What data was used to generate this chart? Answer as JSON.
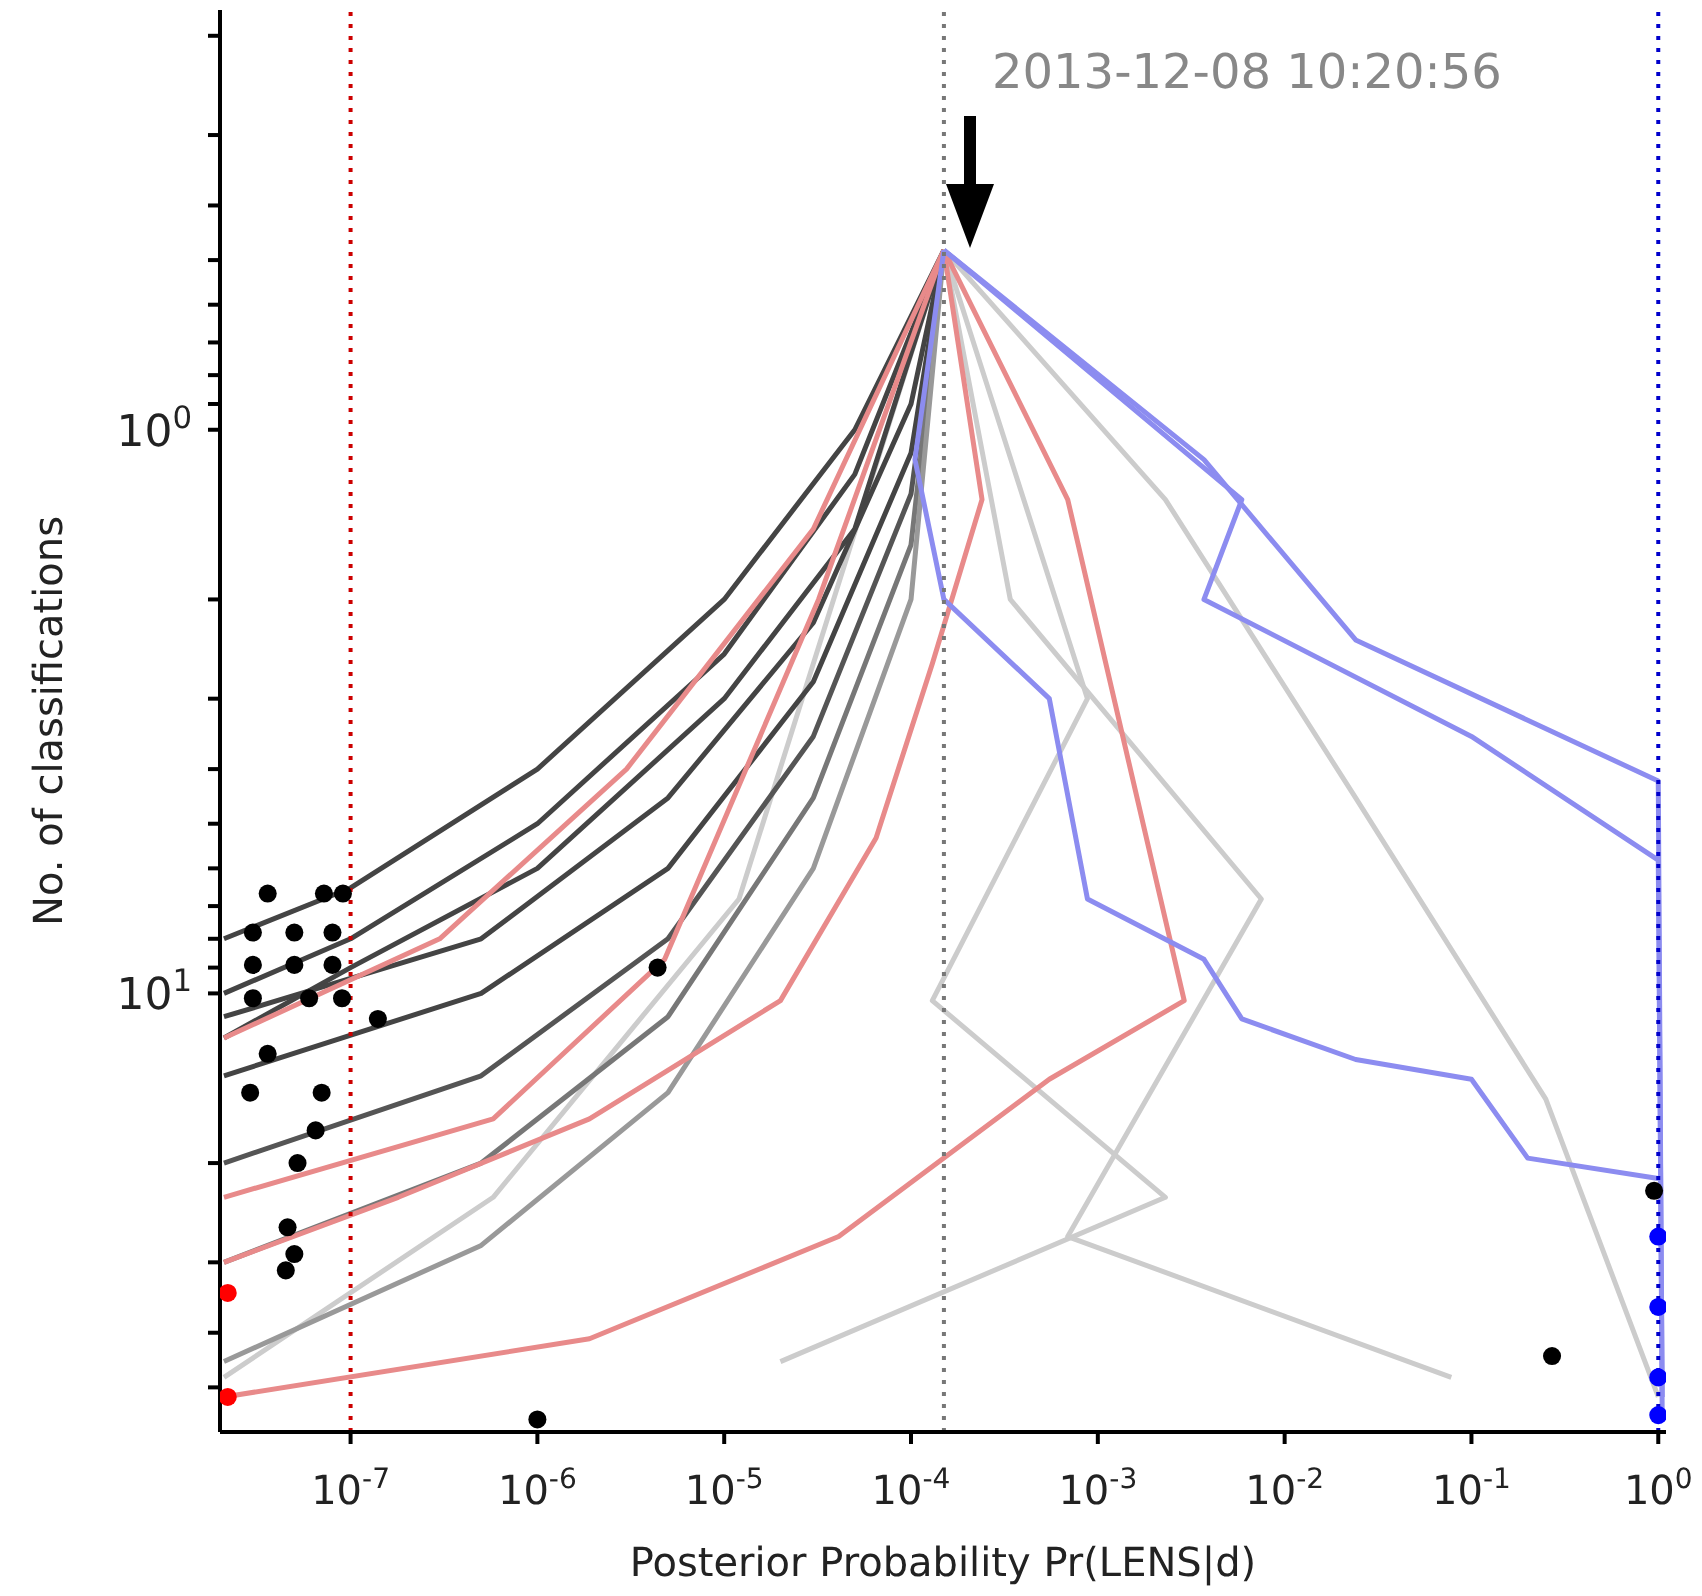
{
  "chart_data": {
    "type": "line",
    "xlabel": "Posterior Probability Pr(LENS|d)",
    "ylabel": "No. of classifications",
    "log": "xy",
    "xlim": [
      2e-08,
      1.1
    ],
    "ylim": [
      60,
      0.18
    ],
    "xticks": [
      {
        "value": 1e-07,
        "label": "10$^{-7}$"
      },
      {
        "value": 1e-06,
        "label": "10$^{-6}$"
      },
      {
        "value": 1e-05,
        "label": "10$^{-5}$"
      },
      {
        "value": 0.0001,
        "label": "10$^{-4}$"
      },
      {
        "value": 0.001,
        "label": "10$^{-3}$"
      },
      {
        "value": 0.01,
        "label": "10$^{-2}$"
      },
      {
        "value": 0.1,
        "label": "10$^{-1}$"
      },
      {
        "value": 1,
        "label": "10$^{0}$"
      }
    ],
    "yticks": [
      {
        "value": 0.2,
        "label": null
      },
      {
        "value": 0.3,
        "label": null
      },
      {
        "value": 0.4,
        "label": null
      },
      {
        "value": 0.5,
        "label": null
      },
      {
        "value": 0.6,
        "label": null
      },
      {
        "value": 0.7,
        "label": null
      },
      {
        "value": 0.8,
        "label": null
      },
      {
        "value": 0.9,
        "label": null
      },
      {
        "value": 1,
        "label": "10$^{0}$"
      },
      {
        "value": 2,
        "label": null
      },
      {
        "value": 3,
        "label": null
      },
      {
        "value": 4,
        "label": null
      },
      {
        "value": 5,
        "label": null
      },
      {
        "value": 6,
        "label": null
      },
      {
        "value": 7,
        "label": null
      },
      {
        "value": 8,
        "label": null
      },
      {
        "value": 9,
        "label": null
      },
      {
        "value": 10,
        "label": "10$^{1}$"
      },
      {
        "value": 20,
        "label": null
      },
      {
        "value": 30,
        "label": null
      },
      {
        "value": 40,
        "label": null
      },
      {
        "value": 50,
        "label": null
      }
    ],
    "grid": false,
    "line_style": "solid",
    "annotations": [
      "2013-12-08 10:20:56"
    ],
    "ref_lines": [
      {
        "axis": "x",
        "value": 1e-07,
        "color": "#cc0000",
        "line_style": "dotted"
      },
      {
        "axis": "x",
        "value": 0.00015,
        "color": "#777777",
        "line_style": "dotted"
      },
      {
        "axis": "x",
        "value": 1,
        "color": "#0000cc",
        "line_style": "dotted"
      }
    ],
    "series": [
      {
        "color": "#cccccc",
        "x": [
          0.00015,
          0.0023,
          0.024,
          0.25,
          1.0
        ],
        "values": [
          0.48,
          1.33,
          4.5,
          15.4,
          52
        ]
      },
      {
        "color": "#cccccc",
        "x": [
          0.00015,
          0.00088,
          0.00013,
          0.0023,
          2e-05
        ],
        "values": [
          0.48,
          3,
          10.3,
          23,
          45
        ]
      },
      {
        "color": "#cccccc",
        "x": [
          0.00015,
          1.2e-05,
          5.8e-07,
          2.1e-08
        ],
        "values": [
          0.48,
          6.8,
          23,
          48
        ]
      },
      {
        "color": "#cccccc",
        "x": [
          0.00015,
          0.00034,
          0.0075,
          0.00069,
          0.078
        ],
        "values": [
          0.48,
          2,
          6.8,
          27,
          48
        ]
      },
      {
        "color": "#444444",
        "x": [
          0.00015,
          5e-05,
          1e-05,
          1e-06,
          1e-07,
          2.1e-08
        ],
        "values": [
          0.48,
          1.0,
          2.0,
          4.0,
          6.5,
          8
        ]
      },
      {
        "color": "#444444",
        "x": [
          0.00015,
          5e-05,
          1e-05,
          1e-06,
          1e-07,
          2.1e-08
        ],
        "values": [
          0.48,
          1.2,
          2.5,
          5,
          8,
          10
        ]
      },
      {
        "color": "#444444",
        "x": [
          0.00015,
          5e-05,
          1e-05,
          1e-06,
          1e-07,
          2.1e-08
        ],
        "values": [
          0.48,
          1.5,
          3,
          6,
          9,
          12
        ]
      },
      {
        "color": "#444444",
        "x": [
          0.00015,
          0.0001,
          3e-05,
          5e-06,
          5e-07,
          2.1e-08
        ],
        "values": [
          0.48,
          0.9,
          2.2,
          4.5,
          8,
          11
        ]
      },
      {
        "color": "#444444",
        "x": [
          0.00015,
          0.0001,
          3e-05,
          5e-06,
          5e-07,
          2.1e-08
        ],
        "values": [
          0.48,
          1.1,
          2.8,
          6,
          10,
          14
        ]
      },
      {
        "color": "#555555",
        "x": [
          0.00015,
          0.0001,
          3e-05,
          5e-06,
          5e-07,
          2.1e-08
        ],
        "values": [
          0.48,
          1.3,
          3.5,
          8,
          14,
          20
        ]
      },
      {
        "color": "#777777",
        "x": [
          0.00015,
          0.0001,
          3e-05,
          5e-06,
          5e-07,
          2.1e-08
        ],
        "values": [
          0.48,
          1.6,
          4.5,
          11,
          20,
          30
        ]
      },
      {
        "color": "#999999",
        "x": [
          0.00015,
          0.0001,
          3e-05,
          5e-06,
          5e-07,
          2.1e-08
        ],
        "values": [
          0.48,
          2,
          6,
          15,
          28,
          45
        ]
      },
      {
        "color": "#e88a8a",
        "x": [
          0.00015,
          3e-05,
          3e-06,
          3e-07,
          2.1e-08
        ],
        "values": [
          0.48,
          1.5,
          4,
          8,
          12
        ]
      },
      {
        "color": "#e88a8a",
        "x": [
          0.00015,
          0.00069,
          0.0029,
          0.00055,
          4.1e-05,
          1.9e-06,
          2.1e-08
        ],
        "values": [
          0.48,
          1.33,
          10.3,
          14.2,
          27,
          41,
          52
        ]
      },
      {
        "color": "#e88a8a",
        "x": [
          0.00015,
          0.00024,
          0.00013,
          6.5e-05,
          2e-05,
          1.9e-06,
          1.8e-07,
          2.1e-08
        ],
        "values": [
          0.48,
          1.33,
          2.6,
          5.3,
          10.3,
          16.7,
          23,
          30
        ]
      },
      {
        "color": "#e88a8a",
        "x": [
          0.00015,
          3.2e-05,
          4.8e-06,
          5.8e-07,
          2.1e-08
        ],
        "values": [
          0.48,
          2.0,
          8.7,
          16.7,
          23
        ]
      },
      {
        "color": "#8c8cf0",
        "x": [
          0.00015,
          0.0037,
          0.024,
          1.0,
          1.05
        ],
        "values": [
          0.48,
          1.13,
          2.36,
          4.2,
          57
        ]
      },
      {
        "color": "#8c8cf0",
        "x": [
          0.00015,
          0.0059,
          0.0037,
          0.1,
          1.0,
          1.05
        ],
        "values": [
          0.48,
          1.33,
          2.0,
          3.5,
          5.8,
          52
        ]
      },
      {
        "color": "#8c8cf0",
        "x": [
          0.00015,
          0.000105,
          0.00015,
          0.00055,
          0.00088,
          0.0037,
          0.0059,
          0.024,
          0.1,
          0.2,
          1.0
        ],
        "values": [
          0.48,
          1.13,
          2.0,
          3.0,
          6.8,
          8.7,
          11.1,
          13.1,
          14.2,
          19.6,
          21.3
        ]
      },
      {
        "type": "scatter",
        "marker": "circle",
        "color": "#000000",
        "x": [
          3.6e-08,
          7.2e-08,
          9.1e-08,
          3e-08,
          5e-08,
          8e-08,
          3e-08,
          5e-08,
          8e-08,
          3e-08,
          6e-08,
          9e-08,
          1.4e-07,
          4.4e-06,
          1e-06,
          4.6e-08,
          5e-08,
          4.5e-08,
          5.2e-08,
          7e-08,
          6.5e-08,
          2.9e-08,
          3.6e-08,
          0.95,
          0.27
        ],
        "values": [
          6.65,
          6.65,
          6.65,
          7.8,
          7.8,
          7.8,
          8.9,
          8.9,
          8.9,
          10.2,
          10.2,
          10.2,
          11.1,
          9.0,
          57,
          26,
          29,
          31,
          20,
          15,
          17.5,
          15,
          12.8,
          22.4,
          44
        ]
      },
      {
        "type": "scatter",
        "marker": "circle",
        "color": "#0000ff",
        "x": [
          1.0,
          1.0,
          1.0,
          1.0
        ],
        "values": [
          27,
          36,
          48,
          56
        ]
      },
      {
        "type": "scatter",
        "marker": "circle",
        "color": "#ff0000",
        "x": [
          2.2e-08,
          2.2e-08
        ],
        "values": [
          34,
          52
        ]
      }
    ]
  }
}
